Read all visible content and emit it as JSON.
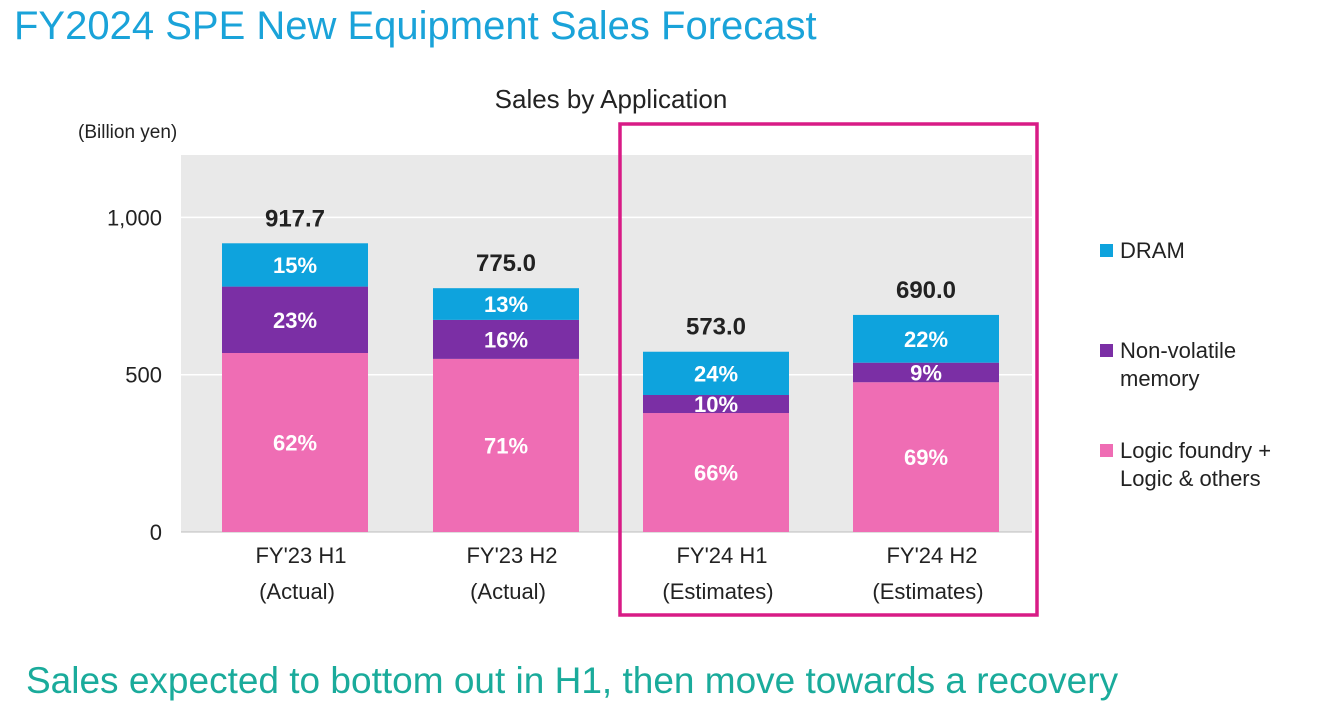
{
  "title": "FY2024 SPE New Equipment Sales Forecast",
  "footer": "Sales expected to bottom out in H1, then move towards a recovery",
  "colors": {
    "dram": "#0ea3dd",
    "nvm": "#7b2fa5",
    "logic": "#ef6db4",
    "highlight": "#d81b86",
    "plot_bg": "#e9e9e9"
  },
  "chart_data": {
    "type": "bar",
    "stacked": true,
    "title": "Sales by Application",
    "ylabel": "(Billion yen)",
    "ylim": [
      0,
      1200
    ],
    "yticks": [
      0,
      500,
      1000
    ],
    "ytick_labels": [
      "0",
      "500",
      "1,000"
    ],
    "categories": [
      [
        "FY'23 H1",
        "(Actual)"
      ],
      [
        "FY'23 H2",
        "(Actual)"
      ],
      [
        "FY'24 H1",
        "(Estimates)"
      ],
      [
        "FY'24 H2",
        "(Estimates)"
      ]
    ],
    "totals": [
      917.7,
      775.0,
      573.0,
      690.0
    ],
    "total_labels": [
      "917.7",
      "775.0",
      "573.0",
      "690.0"
    ],
    "series": [
      {
        "name": "Logic foundry + Logic & others",
        "color_key": "logic",
        "shares": [
          62,
          71,
          66,
          69
        ],
        "labels": [
          "62%",
          "71%",
          "66%",
          "69%"
        ]
      },
      {
        "name": "Non-volatile memory",
        "color_key": "nvm",
        "shares": [
          23,
          16,
          10,
          9
        ],
        "labels": [
          "23%",
          "16%",
          "10%",
          "9%"
        ]
      },
      {
        "name": "DRAM",
        "color_key": "dram",
        "shares": [
          15,
          13,
          24,
          22
        ],
        "labels": [
          "15%",
          "13%",
          "24%",
          "22%"
        ]
      }
    ],
    "legend": [
      {
        "lines": [
          "DRAM"
        ],
        "color_key": "dram"
      },
      {
        "lines": [
          "Non-volatile",
          "memory"
        ],
        "color_key": "nvm"
      },
      {
        "lines": [
          "Logic foundry +",
          "Logic & others"
        ],
        "color_key": "logic"
      }
    ],
    "legend_position": "right",
    "grid": true,
    "highlighted_categories": [
      2,
      3
    ]
  }
}
